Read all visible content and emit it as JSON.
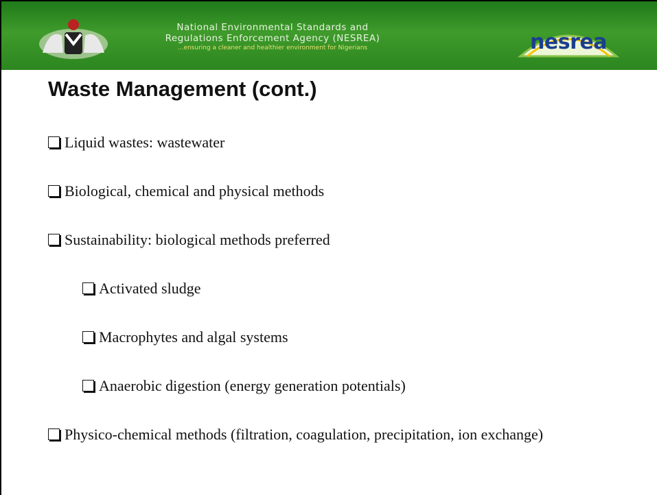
{
  "header": {
    "lines": [
      "National Environmental Standards and",
      "Regulations Enforcement Agency (NESREA)"
    ],
    "tagline": "...ensuring a cleaner and healthier environment for Nigerians",
    "logo_text": "nesrea"
  },
  "title": "Waste Management (cont.)",
  "bullets": [
    {
      "text": "Liquid wastes: wastewater"
    },
    {
      "text": "Biological, chemical and physical methods"
    },
    {
      "text": "Sustainability: biological methods preferred",
      "children": [
        "Activated sludge",
        "Macrophytes and algal systems",
        "Anaerobic digestion (energy generation potentials)"
      ]
    },
    {
      "text": "Physico-chemical methods (filtration, coagulation, precipitation, ion exchange)"
    }
  ]
}
